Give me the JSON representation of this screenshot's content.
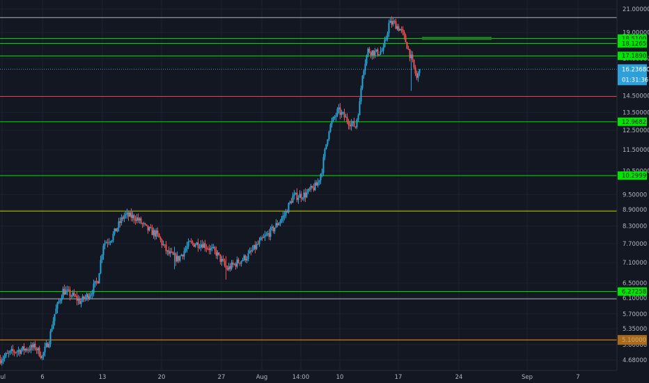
{
  "chart_data": {
    "type": "candlestick",
    "title": "",
    "y_scale": "log",
    "y_range": [
      4.5,
      21.5
    ],
    "price_ticks": [
      "21.00000",
      "19.00000",
      "17.00000",
      "14.50000",
      "13.50000",
      "12.50000",
      "11.50000",
      "10.50000",
      "9.50000",
      "8.90000",
      "8.30000",
      "7.70000",
      "7.10000",
      "6.50000",
      "6.10000",
      "5.70000",
      "5.35000",
      "5.00000",
      "4.68000"
    ],
    "time_ticks": [
      "Jul",
      "6",
      "13",
      "20",
      "27",
      "Aug",
      "14:00",
      "10",
      "17",
      "24",
      "Sep",
      "7"
    ],
    "horizontal_levels": [
      {
        "value": 20.25,
        "color": "#b2b5be",
        "label": ""
      },
      {
        "value": 18.51001,
        "color": "#00e600",
        "label": "18.51001"
      },
      {
        "value": 18.12659,
        "color": "#00e600",
        "label": "18.12659"
      },
      {
        "value": 17.18902,
        "color": "#00e600",
        "label": "17.18902"
      },
      {
        "value": 14.45,
        "color": "#f23645",
        "label": ""
      },
      {
        "value": 12.96823,
        "color": "#00e600",
        "label": "12.96823"
      },
      {
        "value": 10.29999,
        "color": "#00e600",
        "label": "10.29999"
      },
      {
        "value": 8.85,
        "color": "#c8d400",
        "label": ""
      },
      {
        "value": 6.27258,
        "color": "#00e600",
        "label": "6.27258"
      },
      {
        "value": 6.08,
        "color": "#b2b5be",
        "label": ""
      },
      {
        "value": 5.1,
        "color": "#ff9800",
        "label": "5.10000"
      }
    ],
    "zone": {
      "from": 18.4,
      "to": 18.65,
      "color": "#1e7b1e"
    },
    "last_price": {
      "value": 16.2368,
      "label": "16.23680",
      "countdown": "01:31:36",
      "color": "#2d9fd9"
    },
    "anchors": [
      [
        0,
        4.7
      ],
      [
        18,
        4.85
      ],
      [
        50,
        4.95
      ],
      [
        60,
        4.75
      ],
      [
        70,
        5.1
      ],
      [
        78,
        5.7
      ],
      [
        90,
        6.3
      ],
      [
        105,
        6.15
      ],
      [
        115,
        6.0
      ],
      [
        130,
        6.25
      ],
      [
        140,
        6.6
      ],
      [
        148,
        7.7
      ],
      [
        160,
        7.9
      ],
      [
        178,
        8.7
      ],
      [
        195,
        8.6
      ],
      [
        210,
        8.2
      ],
      [
        225,
        8.0
      ],
      [
        240,
        7.4
      ],
      [
        255,
        7.2
      ],
      [
        272,
        7.7
      ],
      [
        290,
        7.7
      ],
      [
        310,
        7.4
      ],
      [
        325,
        6.9
      ],
      [
        340,
        7.1
      ],
      [
        355,
        7.3
      ],
      [
        375,
        7.8
      ],
      [
        392,
        8.2
      ],
      [
        408,
        8.7
      ],
      [
        420,
        9.4
      ],
      [
        438,
        9.5
      ],
      [
        455,
        9.9
      ],
      [
        462,
        10.6
      ],
      [
        472,
        12.6
      ],
      [
        485,
        13.6
      ],
      [
        500,
        13.0
      ],
      [
        510,
        12.7
      ],
      [
        516,
        14.0
      ],
      [
        520,
        16.0
      ],
      [
        528,
        17.6
      ],
      [
        540,
        17.4
      ],
      [
        550,
        17.6
      ],
      [
        558,
        19.7
      ],
      [
        565,
        19.8
      ],
      [
        575,
        19.2
      ],
      [
        582,
        18.3
      ],
      [
        590,
        17.0
      ],
      [
        598,
        15.6
      ],
      [
        603,
        16.24
      ]
    ]
  }
}
